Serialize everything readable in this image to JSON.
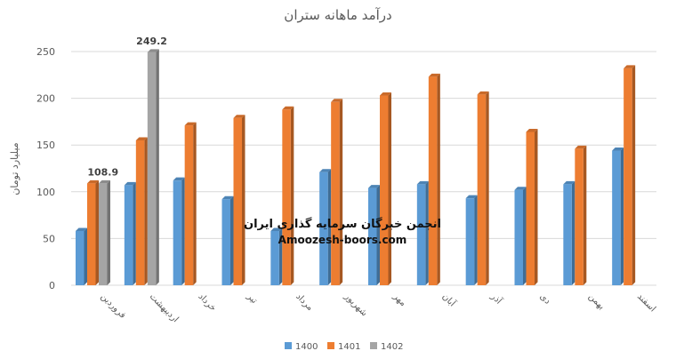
{
  "chart_data": {
    "type": "bar",
    "title": "درآمد ماهانه ستران",
    "ylabel": "میلیارد تومان",
    "xlabel": "",
    "ylim": [
      0,
      250
    ],
    "yticks": [
      0,
      50,
      100,
      150,
      200,
      250
    ],
    "grid": true,
    "legend_position": "bottom",
    "categories": [
      "فروردین",
      "اردیبهشت",
      "خرداد",
      "تیر",
      "مرداد",
      "شهریور",
      "مهر",
      "آبان",
      "آذر",
      "دی",
      "بهمن",
      "اسفند"
    ],
    "series": [
      {
        "name": "1400",
        "color": "#5B9BD5",
        "values": [
          58,
          107,
          112,
          92,
          58,
          121,
          104,
          108,
          93,
          102,
          108,
          144
        ]
      },
      {
        "name": "1401",
        "color": "#ED7D31",
        "values": [
          109,
          155,
          171,
          179,
          188,
          196,
          203,
          223,
          204,
          164,
          146,
          232
        ]
      },
      {
        "name": "1402",
        "color": "#A5A5A5",
        "values": [
          108.9,
          249.2,
          null,
          null,
          null,
          null,
          null,
          null,
          null,
          null,
          null,
          null
        ]
      }
    ],
    "data_labels": [
      {
        "series": "1402",
        "category": "فروردین",
        "text": "108.9"
      },
      {
        "series": "1402",
        "category": "اردیبهشت",
        "text": "249.2"
      }
    ]
  },
  "watermark": {
    "line1": "انجمن خبرگان سرمایه گذاری ایران",
    "line2": "Amoozesh-boors.com"
  }
}
